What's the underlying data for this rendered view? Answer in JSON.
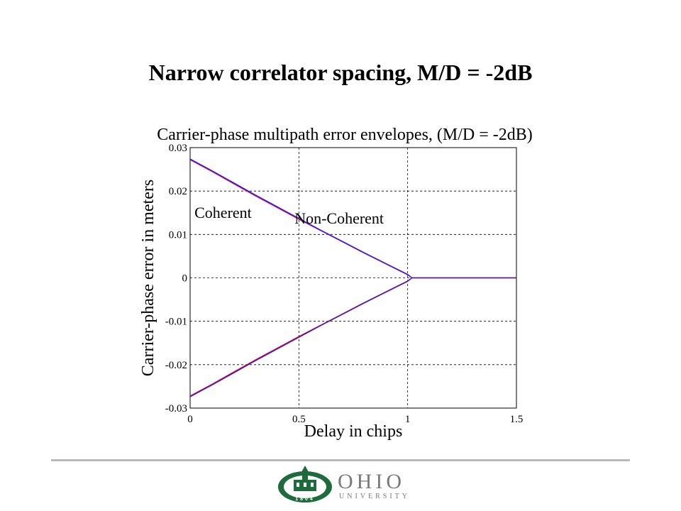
{
  "slide": {
    "title": "Narrow correlator spacing, M/D = -2dB"
  },
  "chart_data": {
    "type": "line",
    "title": "Carrier-phase multipath error envelopes, (M/D = -2dB)",
    "xlabel": "Delay in chips",
    "ylabel": "Carrier-phase error in meters",
    "xlim": [
      0,
      1.5
    ],
    "ylim": [
      -0.03,
      0.03
    ],
    "xticks": [
      "0",
      "0.5",
      "1",
      "1.5"
    ],
    "yticks": [
      "0.03",
      "0.02",
      "0.01",
      "0",
      "-0.01",
      "-0.02",
      "-0.03"
    ],
    "grid": true,
    "grid_style": "dashed",
    "annotations": [
      "Coherent",
      "Non-Coherent"
    ],
    "series": [
      {
        "name": "Coherent",
        "color": "#e8002a",
        "x": [
          0,
          0.1,
          0.2,
          0.3,
          0.4,
          0.5,
          0.6,
          0.7,
          0.8,
          0.9,
          1.0,
          1.02,
          1.1,
          1.2,
          1.3,
          1.4,
          1.5
        ],
        "upper": [
          0.0272,
          0.0245,
          0.0217,
          0.0189,
          0.0162,
          0.0135,
          0.0109,
          0.0083,
          0.0057,
          0.0032,
          0.0007,
          0,
          0,
          0,
          0,
          0,
          0
        ],
        "lower": [
          -0.0272,
          -0.0245,
          -0.0217,
          -0.0189,
          -0.0162,
          -0.0135,
          -0.0109,
          -0.0083,
          -0.0057,
          -0.0032,
          -0.0007,
          0,
          0,
          0,
          0,
          0,
          0
        ]
      },
      {
        "name": "Non-Coherent",
        "color": "#1a1aff",
        "x": [
          0,
          0.1,
          0.2,
          0.3,
          0.4,
          0.5,
          0.6,
          0.7,
          0.8,
          0.9,
          1.0,
          1.02,
          1.1,
          1.2,
          1.3,
          1.4,
          1.5
        ],
        "upper": [
          0.0274,
          0.0247,
          0.0219,
          0.0191,
          0.0164,
          0.0137,
          0.011,
          0.0084,
          0.0058,
          0.0033,
          0.0008,
          0,
          0,
          0,
          0,
          0,
          0
        ],
        "lower": [
          -0.0274,
          -0.0247,
          -0.0219,
          -0.0191,
          -0.0164,
          -0.0137,
          -0.011,
          -0.0084,
          -0.0058,
          -0.0033,
          -0.0008,
          0,
          0,
          0,
          0,
          0,
          0
        ]
      }
    ]
  },
  "footer": {
    "logo_word": "OHIO",
    "logo_sub": "UNIVERSITY",
    "logo_year": "1804",
    "logo_green": "#1e6b3b",
    "logo_gray": "#7a7a7a",
    "rule_color": "#b9b9b9"
  }
}
